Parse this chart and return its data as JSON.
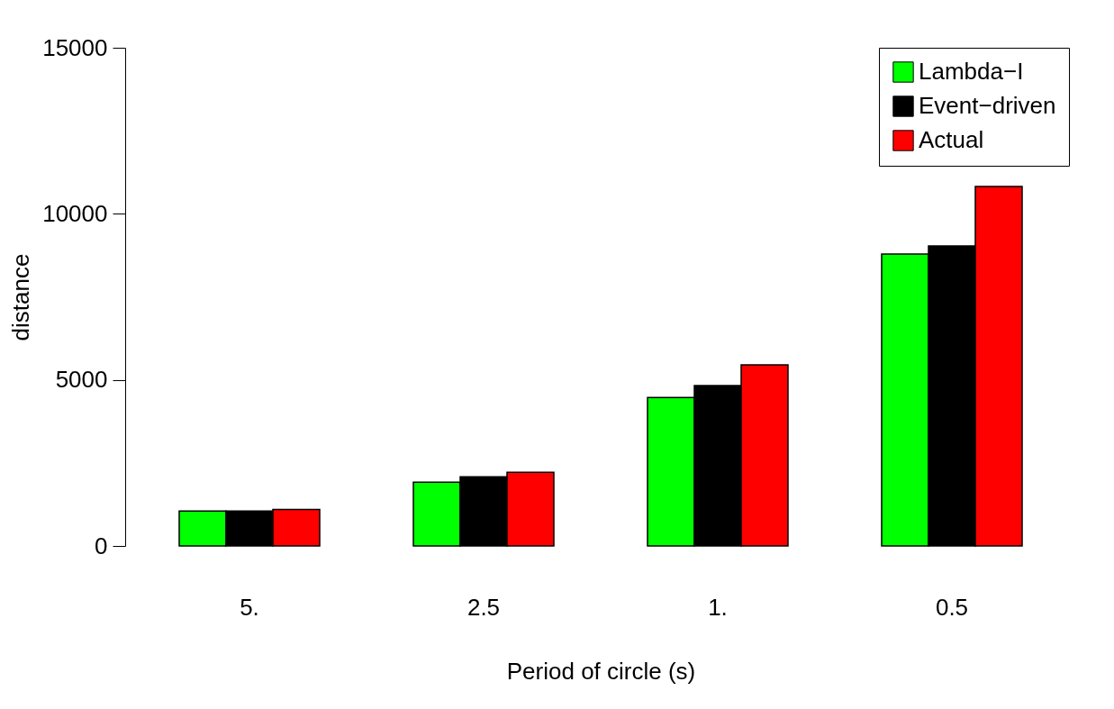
{
  "chart_data": {
    "type": "bar",
    "xlabel": "Period of circle (s)",
    "ylabel": "distance",
    "categories": [
      "5.",
      "2.5",
      "1.",
      "0.5"
    ],
    "series": [
      {
        "name": "Lambda−I",
        "color": "#00ff00",
        "values": [
          1050,
          1920,
          4470,
          8790
        ]
      },
      {
        "name": "Event−driven",
        "color": "#000000",
        "values": [
          1050,
          2080,
          4830,
          9030
        ]
      },
      {
        "name": "Actual",
        "color": "#ff0000",
        "values": [
          1100,
          2220,
          5450,
          10820
        ]
      }
    ],
    "ylim": [
      0,
      15000
    ],
    "yticks": [
      0,
      5000,
      10000,
      15000
    ],
    "legend": "top right",
    "grid": false
  }
}
